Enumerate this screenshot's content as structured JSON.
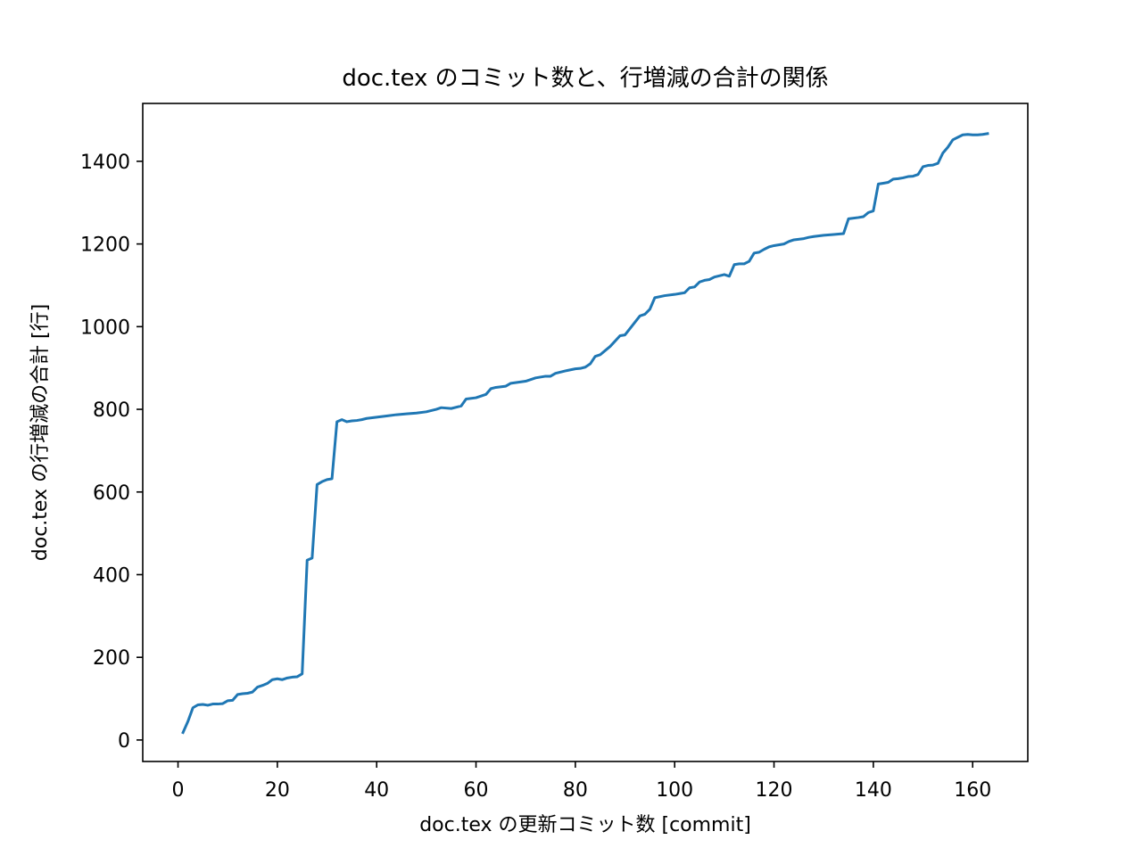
{
  "chart_data": {
    "type": "line",
    "title": "doc.tex のコミット数と、行増減の合計の関係",
    "xlabel": "doc.tex の更新コミット数 [commit]",
    "ylabel": "doc.tex の行増減の合計 [行]",
    "xlim": [
      -7.1,
      171.1
    ],
    "ylim": [
      -52,
      1540
    ],
    "xticks": [
      0,
      20,
      40,
      60,
      80,
      100,
      120,
      140,
      160
    ],
    "yticks": [
      0,
      200,
      400,
      600,
      800,
      1000,
      1200,
      1400
    ],
    "grid": false,
    "line_color": "#1f77b4",
    "series": [
      {
        "name": "doc.tex",
        "x": [
          1,
          2,
          3,
          4,
          5,
          6,
          7,
          8,
          9,
          10,
          11,
          12,
          13,
          14,
          15,
          16,
          17,
          18,
          19,
          20,
          21,
          22,
          23,
          24,
          25,
          26,
          27,
          28,
          29,
          30,
          31,
          32,
          33,
          34,
          35,
          36,
          37,
          38,
          40,
          42,
          44,
          46,
          48,
          50,
          52,
          53,
          55,
          57,
          58,
          60,
          62,
          63,
          64,
          66,
          67,
          70,
          72,
          74,
          75,
          76,
          78,
          80,
          81,
          82,
          83,
          84,
          85,
          86,
          87,
          89,
          90,
          93,
          94,
          95,
          96,
          98,
          100,
          101,
          102,
          103,
          104,
          105,
          106,
          107,
          108,
          110,
          111,
          112,
          113,
          114,
          115,
          116,
          117,
          118,
          119,
          120,
          122,
          123,
          124,
          126,
          127,
          128,
          130,
          132,
          134,
          135,
          137,
          138,
          139,
          140,
          141,
          142,
          143,
          144,
          145,
          146,
          147,
          148,
          149,
          150,
          151,
          152,
          153,
          154,
          155,
          156,
          157,
          158,
          159,
          160,
          161,
          162,
          163
        ],
        "y": [
          18,
          45,
          78,
          85,
          86,
          84,
          87,
          87,
          88,
          95,
          96,
          110,
          112,
          113,
          116,
          128,
          132,
          137,
          146,
          148,
          146,
          150,
          152,
          153,
          160,
          435,
          440,
          618,
          625,
          630,
          632,
          770,
          775,
          770,
          772,
          773,
          775,
          778,
          781,
          784,
          787,
          789,
          791,
          794,
          800,
          804,
          802,
          808,
          825,
          828,
          836,
          850,
          853,
          856,
          863,
          868,
          876,
          880,
          880,
          887,
          893,
          898,
          899,
          902,
          910,
          928,
          932,
          942,
          952,
          978,
          980,
          1026,
          1030,
          1042,
          1070,
          1075,
          1078,
          1080,
          1082,
          1094,
          1096,
          1108,
          1112,
          1114,
          1120,
          1126,
          1122,
          1150,
          1152,
          1152,
          1158,
          1178,
          1180,
          1187,
          1193,
          1196,
          1200,
          1206,
          1210,
          1213,
          1216,
          1218,
          1221,
          1223,
          1225,
          1261,
          1264,
          1266,
          1276,
          1280,
          1345,
          1347,
          1349,
          1357,
          1358,
          1360,
          1363,
          1364,
          1368,
          1387,
          1390,
          1391,
          1395,
          1420,
          1434,
          1452,
          1458,
          1464,
          1465,
          1464,
          1464,
          1465,
          1467
        ]
      }
    ]
  }
}
